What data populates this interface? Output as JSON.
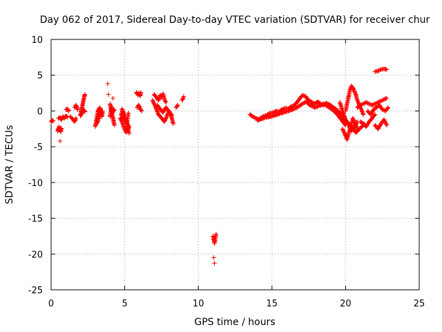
{
  "chart_data": {
    "type": "scatter",
    "title": "Day 062 of 2017, Sidereal Day-to-day VTEC variation (SDTVAR) for receiver chur",
    "xlabel": "GPS time / hours",
    "ylabel": "SDTVAR / TECUs",
    "xlim": [
      0,
      25
    ],
    "ylim": [
      -25,
      10
    ],
    "xticks": [
      0,
      5,
      10,
      15,
      20,
      25
    ],
    "yticks": [
      -25,
      -20,
      -15,
      -10,
      -5,
      0,
      5,
      10
    ],
    "grid": true,
    "marker": "+",
    "color": "#ff0000",
    "series": [
      {
        "name": "SDTVAR",
        "segments": [
          {
            "x": [
              0.0,
              0.08,
              0.15
            ],
            "y": [
              -1.5,
              -1.3,
              -1.4
            ]
          },
          {
            "x": [
              0.45,
              0.5,
              0.55,
              0.6,
              0.65,
              0.7
            ],
            "y": [
              -2.8,
              -2.5,
              -2.2,
              -2.6,
              -2.9,
              -2.4
            ]
          },
          {
            "x": [
              0.5,
              0.6,
              0.7,
              0.8,
              0.9,
              1.0,
              1.1
            ],
            "y": [
              -1.0,
              -0.9,
              -1.2,
              -0.8,
              -1.0,
              -0.7,
              -0.9
            ]
          },
          {
            "x": [
              0.6
            ],
            "y": [
              -4.2
            ]
          },
          {
            "x": [
              1.0,
              1.1,
              1.2
            ],
            "y": [
              0.2,
              0.3,
              0.0
            ]
          },
          {
            "x": [
              1.3,
              1.4,
              1.5,
              1.6,
              1.7
            ],
            "y": [
              -0.8,
              -1.0,
              -1.2,
              -1.5,
              -1.0
            ]
          },
          {
            "x": [
              1.6,
              1.7,
              1.8
            ],
            "y": [
              0.5,
              0.8,
              0.2
            ]
          },
          {
            "x": [
              2.0,
              2.05,
              2.1,
              2.15,
              2.2,
              2.25,
              2.3
            ],
            "y": [
              -0.5,
              0.0,
              0.5,
              1.0,
              1.5,
              2.0,
              2.3
            ]
          },
          {
            "x": [
              2.0,
              2.1,
              2.2,
              2.3
            ],
            "y": [
              -0.7,
              -0.3,
              0.2,
              -0.1
            ]
          },
          {
            "x": [
              3.0,
              3.05,
              3.1,
              3.15,
              3.2,
              3.25,
              3.3,
              3.35,
              3.4,
              3.45,
              3.5
            ],
            "y": [
              -2.2,
              -1.5,
              -1.0,
              -0.5,
              0.0,
              0.3,
              0.5,
              0.2,
              -0.3,
              -0.8,
              0.0
            ]
          },
          {
            "x": [
              3.1,
              3.2,
              3.3,
              3.4
            ],
            "y": [
              -1.8,
              -1.2,
              -0.6,
              -0.2
            ]
          },
          {
            "x": [
              3.85
            ],
            "y": [
              3.8
            ]
          },
          {
            "x": [
              3.9
            ],
            "y": [
              2.3
            ]
          },
          {
            "x": [
              4.0,
              4.05,
              4.1,
              4.15,
              4.2,
              4.25,
              4.3
            ],
            "y": [
              1.0,
              0.5,
              0.0,
              -0.5,
              -1.0,
              -1.5,
              -2.0
            ]
          },
          {
            "x": [
              4.0,
              4.1,
              4.2,
              4.3
            ],
            "y": [
              -0.8,
              0.6,
              -0.2,
              0.2
            ]
          },
          {
            "x": [
              4.2
            ],
            "y": [
              1.8
            ]
          },
          {
            "x": [
              4.7,
              4.8,
              4.9,
              5.0,
              5.1,
              5.2,
              5.3,
              4.75,
              4.85,
              4.95,
              5.05,
              5.15,
              5.25
            ],
            "y": [
              -1.0,
              -1.5,
              -2.0,
              -2.5,
              -3.0,
              -2.8,
              -2.2,
              -0.5,
              0.0,
              -0.8,
              -1.2,
              -1.8,
              -0.3
            ]
          },
          {
            "x": [
              4.8,
              4.9,
              5.0,
              5.1,
              5.2,
              5.3
            ],
            "y": [
              0.3,
              -0.2,
              -1.0,
              -1.6,
              -2.4,
              -3.1
            ]
          },
          {
            "x": [
              5.8,
              5.85,
              5.9,
              5.95,
              6.0,
              6.05,
              6.1
            ],
            "y": [
              2.6,
              2.4,
              2.2,
              2.5,
              2.3,
              2.1,
              2.6
            ]
          },
          {
            "x": [
              5.85,
              5.95,
              6.05,
              6.15
            ],
            "y": [
              0.5,
              0.8,
              0.3,
              0.0
            ]
          },
          {
            "x": [
              6.9,
              7.0,
              7.1,
              7.2,
              7.3,
              7.4,
              7.5,
              7.6,
              7.7,
              7.8,
              7.9,
              8.0,
              8.1,
              8.2,
              8.3
            ],
            "y": [
              1.5,
              1.0,
              0.5,
              0.0,
              -0.5,
              -0.8,
              -1.0,
              -1.2,
              -1.5,
              -1.0,
              -0.5,
              0.0,
              -0.5,
              -1.0,
              -1.8
            ]
          },
          {
            "x": [
              7.0,
              7.1,
              7.2,
              7.3,
              7.4,
              7.5,
              7.6,
              7.7,
              7.8
            ],
            "y": [
              2.3,
              2.0,
              1.8,
              1.5,
              2.2,
              1.9,
              2.4,
              1.6,
              1.2
            ]
          },
          {
            "x": [
              7.2,
              7.4,
              7.6,
              7.8,
              8.0,
              8.2
            ],
            "y": [
              0.8,
              0.3,
              -0.2,
              0.5,
              0.0,
              -0.6
            ]
          },
          {
            "x": [
              8.5,
              8.6
            ],
            "y": [
              0.5,
              0.8
            ]
          },
          {
            "x": [
              8.9,
              9.0
            ],
            "y": [
              1.5,
              2.0
            ]
          },
          {
            "x": [
              11.0,
              11.05,
              11.1,
              11.15,
              11.2
            ],
            "y": [
              -17.5,
              -18.0,
              -18.5,
              -17.8,
              -17.2
            ]
          },
          {
            "x": [
              11.05
            ],
            "y": [
              -20.5
            ]
          },
          {
            "x": [
              11.1
            ],
            "y": [
              -21.3
            ]
          },
          {
            "x": [
              13.5,
              13.7,
              13.9,
              14.1,
              14.3,
              14.5,
              14.7,
              14.9,
              15.1,
              15.3,
              15.5,
              15.7,
              15.9,
              16.1,
              16.3,
              16.5,
              16.7,
              16.9,
              17.1,
              17.3,
              17.5,
              17.7,
              17.9,
              18.1,
              18.3,
              18.5,
              18.7,
              18.9,
              19.1,
              19.3,
              19.5,
              19.7,
              19.9,
              20.1,
              20.3,
              20.5,
              20.7,
              20.9,
              21.1,
              21.3
            ],
            "y": [
              -0.5,
              -0.8,
              -1.0,
              -1.2,
              -0.9,
              -0.7,
              -0.5,
              -0.3,
              -0.2,
              0.0,
              -0.1,
              0.2,
              0.4,
              0.3,
              0.6,
              0.8,
              1.2,
              1.8,
              2.2,
              2.0,
              1.5,
              1.2,
              1.0,
              1.3,
              1.0,
              0.8,
              1.1,
              0.9,
              0.6,
              0.3,
              0.0,
              -0.5,
              -1.0,
              -1.5,
              -2.0,
              -2.5,
              -3.0,
              -2.6,
              -2.2,
              -1.8
            ]
          },
          {
            "x": [
              14.0,
              14.3,
              14.6,
              14.9,
              15.2,
              15.5,
              15.8,
              16.1,
              16.4,
              16.7,
              17.0,
              17.3,
              17.6,
              17.9,
              18.2,
              18.5,
              18.8,
              19.1,
              19.4,
              19.7,
              20.0
            ],
            "y": [
              -1.3,
              -1.1,
              -0.9,
              -0.8,
              -0.6,
              -0.4,
              -0.2,
              0.0,
              0.2,
              0.5,
              0.9,
              1.3,
              0.8,
              0.5,
              0.7,
              1.0,
              0.6,
              0.2,
              -0.4,
              -1.2,
              -2.0
            ]
          },
          {
            "x": [
              19.8,
              19.9,
              20.0,
              20.1,
              20.2,
              20.3,
              20.4,
              20.5,
              20.6,
              20.7,
              20.8
            ],
            "y": [
              -2.5,
              -3.0,
              -3.5,
              -4.0,
              -3.2,
              -2.5,
              -1.8,
              -1.0,
              -1.5,
              -2.0,
              -2.5
            ]
          },
          {
            "x": [
              19.6,
              19.8,
              20.0,
              20.2,
              20.4,
              20.6,
              20.8
            ],
            "y": [
              1.2,
              0.0,
              -1.2,
              -2.0,
              -2.8,
              -2.2,
              -1.5
            ]
          },
          {
            "x": [
              20.0,
              20.1,
              20.2,
              20.3,
              20.4,
              20.5,
              20.6,
              20.7,
              20.8,
              20.9,
              21.0,
              21.1,
              21.2
            ],
            "y": [
              0.0,
              1.0,
              2.0,
              3.0,
              3.5,
              3.2,
              2.8,
              2.2,
              1.5,
              1.0,
              0.5,
              0.0,
              -0.5
            ]
          },
          {
            "x": [
              20.8,
              21.0,
              21.2,
              21.4,
              21.6,
              21.8,
              22.0,
              22.2,
              22.4,
              22.6,
              22.8
            ],
            "y": [
              0.5,
              0.8,
              1.0,
              1.2,
              1.0,
              0.8,
              1.0,
              1.2,
              1.4,
              1.6,
              1.8
            ]
          },
          {
            "x": [
              21.0,
              21.2,
              21.4,
              21.6,
              21.8,
              22.0
            ],
            "y": [
              -1.5,
              -1.8,
              -2.2,
              -1.5,
              -1.0,
              -0.5
            ]
          },
          {
            "x": [
              21.5,
              21.7,
              21.9,
              22.1,
              22.3,
              22.5,
              22.7,
              22.9
            ],
            "y": [
              0.0,
              -0.5,
              0.2,
              0.5,
              0.8,
              0.2,
              0.0,
              0.5
            ]
          },
          {
            "x": [
              22.0,
              22.2,
              22.4,
              22.6,
              22.8
            ],
            "y": [
              -2.0,
              -2.5,
              -1.8,
              -1.2,
              -2.0
            ]
          },
          {
            "x": [
              22.0,
              22.2,
              22.4,
              22.6,
              22.8
            ],
            "y": [
              5.5,
              5.6,
              5.8,
              5.9,
              5.8
            ]
          }
        ]
      }
    ]
  }
}
